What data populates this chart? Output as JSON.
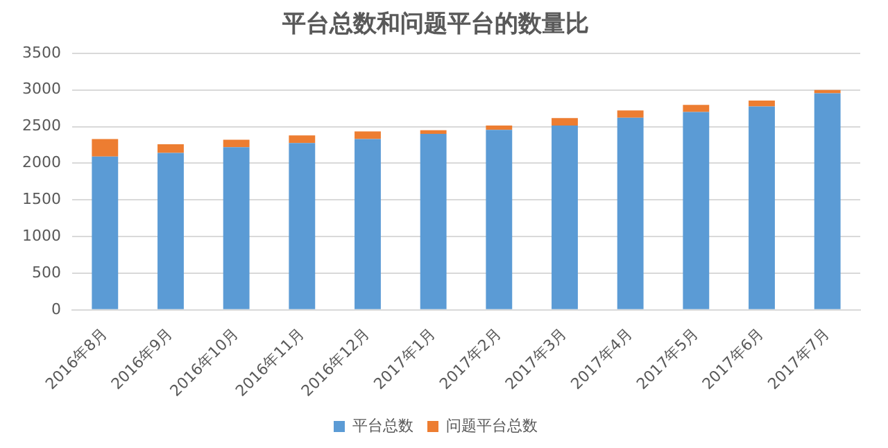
{
  "chart_data": {
    "type": "bar",
    "title": "平台总数和问题平台的数量比",
    "stacked": true,
    "categories": [
      "2016年8月",
      "2016年9月",
      "2016年10月",
      "2016年11月",
      "2016年12月",
      "2017年1月",
      "2017年2月",
      "2017年3月",
      "2017年4月",
      "2017年5月",
      "2017年6月",
      "2017年7月"
    ],
    "series": [
      {
        "name": "平台总数",
        "color": "#5b9bd5",
        "values": [
          2090,
          2140,
          2220,
          2275,
          2330,
          2400,
          2455,
          2515,
          2620,
          2700,
          2775,
          2955
        ]
      },
      {
        "name": "问题平台总数",
        "color": "#ed7d31",
        "values": [
          240,
          120,
          100,
          105,
          105,
          50,
          60,
          100,
          100,
          95,
          80,
          45
        ]
      }
    ],
    "ylim": [
      0,
      3500
    ],
    "yticks": [
      0,
      500,
      1000,
      1500,
      2000,
      2500,
      3000,
      3500
    ],
    "grid": "y",
    "legend": "bottom"
  }
}
